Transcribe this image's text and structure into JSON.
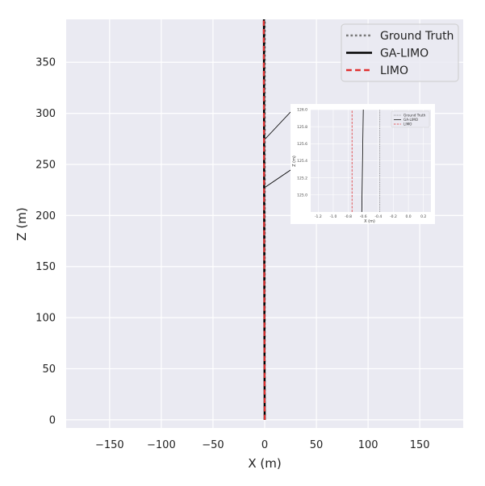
{
  "chart_data": {
    "type": "line",
    "xlabel": "X (m)",
    "ylabel": "Z (m)",
    "xlim": [
      -192,
      192
    ],
    "ylim": [
      -8,
      392
    ],
    "x_ticks": [
      -150,
      -100,
      -50,
      0,
      50,
      100,
      150
    ],
    "y_ticks": [
      0,
      50,
      100,
      150,
      200,
      250,
      300,
      350
    ],
    "grid": true,
    "background": "#eaeaf2",
    "legend_position": "top-right",
    "series": [
      {
        "name": "Ground Truth",
        "style": "dotted",
        "color": "#777777",
        "points": [
          [
            0.0,
            0
          ],
          [
            0.0,
            392
          ]
        ]
      },
      {
        "name": "GA-LIMO",
        "style": "solid",
        "color": "#000000",
        "points": [
          [
            0.0,
            0
          ],
          [
            -0.3,
            100
          ],
          [
            -0.5,
            200
          ],
          [
            -0.6,
            300
          ],
          [
            -0.7,
            392
          ]
        ]
      },
      {
        "name": "LIMO",
        "style": "dashed",
        "color": "#e03030",
        "points": [
          [
            0.0,
            0
          ],
          [
            -0.3,
            100
          ],
          [
            -0.6,
            200
          ],
          [
            -0.75,
            300
          ],
          [
            -0.9,
            392
          ]
        ]
      }
    ],
    "inset": {
      "xlabel": "X (m)",
      "ylabel": "Z (m)",
      "xlim": [
        -1.3,
        0.3
      ],
      "ylim": [
        124.8,
        126.0
      ],
      "x_ticks": [
        -1.2,
        -1.0,
        -0.8,
        -0.6,
        -0.4,
        -0.2,
        0.0,
        0.2
      ],
      "x_tick_labels": [
        "-1.2",
        "-1.0",
        "-0.8",
        "-0.6",
        "-0.4",
        "-0.2",
        "0.0",
        "0.2"
      ],
      "y_ticks": [
        125.0,
        125.2,
        125.4,
        125.6,
        125.8,
        126.0
      ],
      "y_tick_labels": [
        "125.0",
        "125.2",
        "125.4",
        "125.6",
        "125.8",
        "126.0"
      ],
      "legend_position": "top-right",
      "series": [
        {
          "name": "Ground Truth",
          "style": "dotted",
          "color": "#777777",
          "points": [
            [
              -0.38,
              124.8
            ],
            [
              -0.38,
              126.0
            ]
          ]
        },
        {
          "name": "GA-LIMO",
          "style": "solid",
          "color": "#000000",
          "points": [
            [
              -0.62,
              124.8
            ],
            [
              -0.61,
              125.4
            ],
            [
              -0.6,
              126.0
            ]
          ]
        },
        {
          "name": "LIMO",
          "style": "dashed",
          "color": "#e03030",
          "points": [
            [
              -0.75,
              124.8
            ],
            [
              -0.75,
              126.0
            ]
          ]
        }
      ]
    }
  }
}
